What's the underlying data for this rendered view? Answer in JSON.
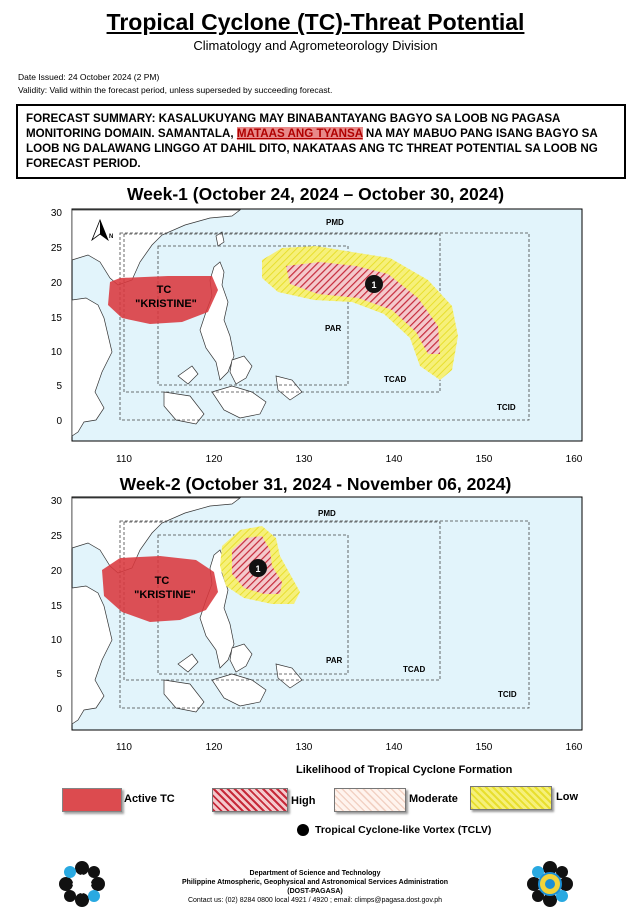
{
  "header": {
    "title": "Tropical Cyclone (TC)-Threat Potential",
    "subtitle": "Climatology and Agrometeorology Division",
    "date_label": "Date Issued:",
    "date_value": "24 October 2024 (2 PM)",
    "validity": "Validity: Valid within the forecast period, unless superseded by succeeding forecast."
  },
  "summary": {
    "part1": "FORECAST SUMMARY: KASALUKUYANG MAY BINABANTAYANG BAGYO SA LOOB NG PAGASA MONITORING DOMAIN. SAMANTALA, ",
    "highlight": "MATAAS ANG TYANSA",
    "part2": " NA MAY MABUO PANG ISANG BAGYO SA LOOB NG DALAWANG LINGGO AT DAHIL DITO, NAKATAAS ANG TC THREAT POTENTIAL SA LOOB NG FORECAST PERIOD."
  },
  "week1": {
    "title": "Week-1 (October 24, 2024 – October 30, 2024)",
    "tc_name_line1": "TC",
    "tc_name_line2": "\"KRISTINE\"",
    "vortex": "1"
  },
  "week2": {
    "title": "Week-2 (October 31, 2024 - November 06, 2024)",
    "tc_name_line1": "TC",
    "tc_name_line2": "\"KRISTINE\"",
    "vortex": "1"
  },
  "map_labels": {
    "pmd": "PMD",
    "par": "PAR",
    "tcad": "TCAD",
    "tcid": "TCID",
    "north": "N"
  },
  "axes": {
    "x_ticks": [
      "110",
      "120",
      "130",
      "140",
      "150",
      "160"
    ],
    "y_ticks": [
      "30",
      "25",
      "20",
      "15",
      "10",
      "5",
      "0"
    ]
  },
  "legend": {
    "title": "Likelihood of Tropical Cyclone Formation",
    "active_tc": "Active TC",
    "high": "High",
    "moderate": "Moderate",
    "low": "Low",
    "tclv": "Tropical Cyclone-like Vortex (TCLV)"
  },
  "footer": {
    "line1": "Department of Science and Technology",
    "line2": "Philippine Atmospheric, Geophysical and Astronomical Services Administration",
    "line3": "(DOST-PAGASA)",
    "line4": "Contact us: (02) 8284 0800 local 4921 / 4920 ; email: climps@pagasa.dost.gov.ph"
  },
  "colors": {
    "active_tc": "#d9383d",
    "high": "#c62a3a",
    "low": "#f3ee4d",
    "sea": "#e2f4fb",
    "land": "#ffffff"
  }
}
